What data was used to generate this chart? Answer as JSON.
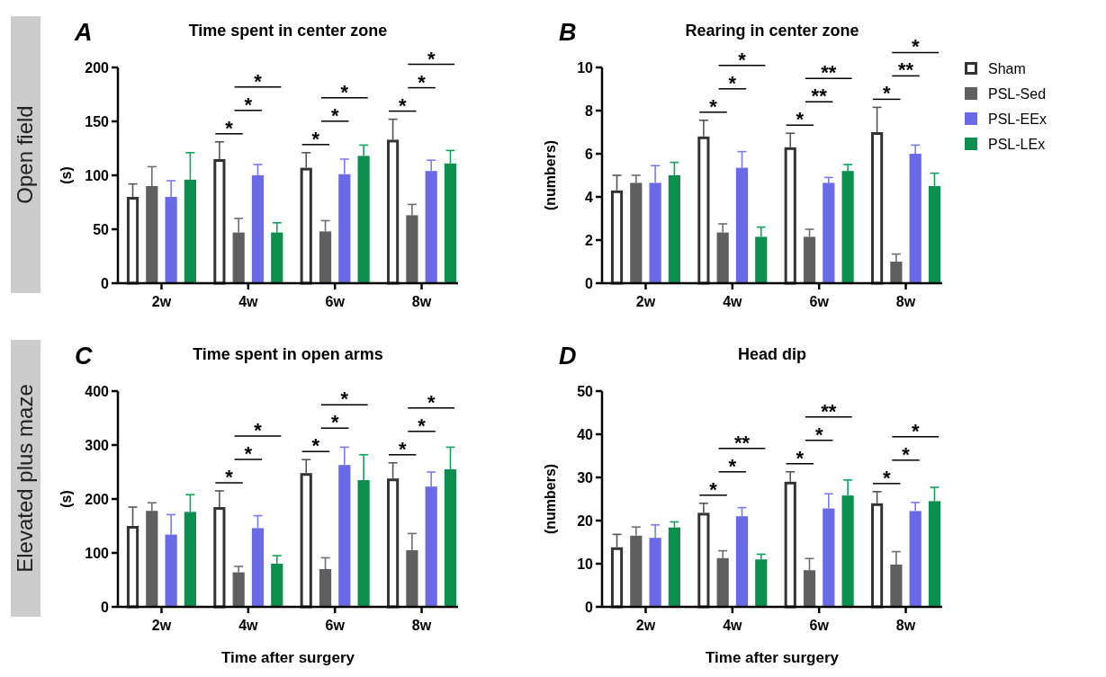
{
  "chart_data": [
    {
      "type": "bar",
      "title": "Time spent in center zone",
      "ylabel": "(s)",
      "categories": [
        "2w",
        "4w",
        "6w",
        "8w"
      ],
      "ylim": [
        0,
        200
      ],
      "yticks": [
        0,
        50,
        100,
        150,
        200
      ],
      "legend": false,
      "series": [
        {
          "color": "#ffffff",
          "values": [
            80,
            115,
            107,
            133
          ],
          "errors": [
            [
              80,
              92
            ],
            [
              115,
              131
            ],
            [
              107,
              121
            ],
            [
              133,
              152
            ]
          ]
        },
        {
          "color": "#5f5f5f",
          "values": [
            90,
            47,
            48,
            63
          ],
          "errors": [
            [
              90,
              108
            ],
            [
              47,
              60
            ],
            [
              48,
              58
            ],
            [
              63,
              73
            ]
          ]
        },
        {
          "color": "#6a6ae6",
          "values": [
            80,
            100,
            101,
            104
          ],
          "errors": [
            [
              80,
              95
            ],
            [
              100,
              110
            ],
            [
              101,
              115
            ],
            [
              104,
              114
            ]
          ]
        },
        {
          "color": "#0a8f4e",
          "values": [
            96,
            47,
            118,
            111
          ],
          "errors": [
            [
              96,
              121
            ],
            [
              47,
              56
            ],
            [
              118,
              128
            ],
            [
              111,
              123
            ]
          ]
        }
      ],
      "annotations": [
        "A",
        "Open field",
        "*",
        "*",
        "*",
        "*",
        "*",
        "*",
        "*",
        "*",
        "*"
      ]
    },
    {
      "type": "bar",
      "title": "Rearing in center zone",
      "ylabel": "(numbers)",
      "categories": [
        "2w",
        "4w",
        "6w",
        "8w"
      ],
      "ylim": [
        0,
        10
      ],
      "yticks": [
        0,
        2,
        4,
        6,
        8,
        10
      ],
      "legend": "right",
      "series": [
        {
          "name": "Sham",
          "color": "#ffffff",
          "values": [
            4.3,
            6.8,
            6.3,
            7.0
          ],
          "errors": [
            [
              4.3,
              5.0
            ],
            [
              6.8,
              7.55
            ],
            [
              6.3,
              6.95
            ],
            [
              7.0,
              8.15
            ]
          ]
        },
        {
          "name": "PSL-Sed",
          "color": "#5f5f5f",
          "values": [
            4.65,
            2.35,
            2.15,
            1.0
          ],
          "errors": [
            [
              4.65,
              5.0
            ],
            [
              2.35,
              2.75
            ],
            [
              2.15,
              2.5
            ],
            [
              1.0,
              1.35
            ]
          ]
        },
        {
          "name": "PSL-EEx",
          "color": "#6a6ae6",
          "values": [
            4.65,
            5.35,
            4.65,
            6.0
          ],
          "errors": [
            [
              4.65,
              5.45
            ],
            [
              5.35,
              6.1
            ],
            [
              4.65,
              4.9
            ],
            [
              6.0,
              6.4
            ]
          ]
        },
        {
          "name": "PSL-LEx",
          "color": "#0a8f4e",
          "values": [
            5.0,
            2.15,
            5.2,
            4.5
          ],
          "errors": [
            [
              5.0,
              5.6
            ],
            [
              2.15,
              2.6
            ],
            [
              5.2,
              5.5
            ],
            [
              4.5,
              5.1
            ]
          ]
        }
      ],
      "annotations": [
        "B",
        null,
        "*",
        "*",
        "*",
        "*",
        "**",
        "**",
        "*",
        "**",
        "*"
      ]
    },
    {
      "type": "bar",
      "title": "Time spent in open arms",
      "ylabel": "(s)",
      "xlabel": "Time after surgery",
      "categories": [
        "2w",
        "4w",
        "6w",
        "8w"
      ],
      "ylim": [
        0,
        400
      ],
      "yticks": [
        0,
        100,
        200,
        300,
        400
      ],
      "legend": false,
      "series": [
        {
          "color": "#ffffff",
          "values": [
            150,
            185,
            248,
            238
          ],
          "errors": [
            [
              150,
              185
            ],
            [
              185,
              215
            ],
            [
              248,
              273
            ],
            [
              238,
              267
            ]
          ]
        },
        {
          "color": "#5f5f5f",
          "values": [
            178,
            64,
            70,
            105
          ],
          "errors": [
            [
              178,
              193
            ],
            [
              64,
              75
            ],
            [
              70,
              91
            ],
            [
              105,
              136
            ]
          ]
        },
        {
          "color": "#6a6ae6",
          "values": [
            134,
            146,
            263,
            223
          ],
          "errors": [
            [
              134,
              171
            ],
            [
              146,
              169
            ],
            [
              263,
              296
            ],
            [
              223,
              250
            ]
          ]
        },
        {
          "color": "#0a8f4e",
          "values": [
            176,
            80,
            235,
            255
          ],
          "errors": [
            [
              176,
              208
            ],
            [
              80,
              95
            ],
            [
              235,
              282
            ],
            [
              255,
              296
            ]
          ]
        }
      ],
      "annotations": [
        "C",
        "Elevated plus maze",
        "*",
        "*",
        "*",
        "*",
        "*",
        "*",
        "*",
        "*",
        "*"
      ]
    },
    {
      "type": "bar",
      "title": "Head dip",
      "ylabel": "(numbers)",
      "xlabel": "Time after surgery",
      "categories": [
        "2w",
        "4w",
        "6w",
        "8w"
      ],
      "ylim": [
        0,
        50
      ],
      "yticks": [
        0,
        10,
        20,
        30,
        40,
        50
      ],
      "legend": false,
      "series": [
        {
          "color": "#ffffff",
          "values": [
            13.8,
            21.8,
            29.0,
            24.0
          ],
          "errors": [
            [
              13.8,
              16.8
            ],
            [
              21.8,
              24.0
            ],
            [
              29.0,
              31.3
            ],
            [
              24.0,
              26.7
            ]
          ]
        },
        {
          "color": "#5f5f5f",
          "values": [
            16.5,
            11.3,
            8.5,
            9.8
          ],
          "errors": [
            [
              16.5,
              18.5
            ],
            [
              11.3,
              13.0
            ],
            [
              8.5,
              11.2
            ],
            [
              9.8,
              12.8
            ]
          ]
        },
        {
          "color": "#6a6ae6",
          "values": [
            16.0,
            21.0,
            22.8,
            22.2
          ],
          "errors": [
            [
              16.0,
              19.0
            ],
            [
              21.0,
              23.0
            ],
            [
              22.8,
              26.2
            ],
            [
              22.2,
              24.2
            ]
          ]
        },
        {
          "color": "#0a8f4e",
          "values": [
            18.4,
            11.0,
            25.8,
            24.5
          ],
          "errors": [
            [
              18.4,
              19.7
            ],
            [
              11.0,
              12.2
            ],
            [
              25.8,
              29.4
            ],
            [
              24.5,
              27.7
            ]
          ]
        }
      ],
      "annotations": [
        "D",
        null,
        "*",
        "*",
        "**",
        "*",
        "*",
        "**",
        "*",
        "*",
        "*"
      ]
    }
  ]
}
